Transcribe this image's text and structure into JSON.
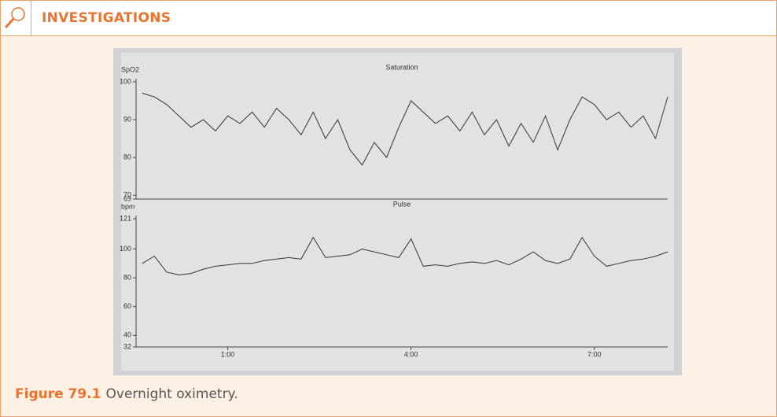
{
  "header": {
    "title": "INVESTIGATIONS"
  },
  "chart_data": [
    {
      "type": "line",
      "title": "Saturation",
      "y_label": "SpO2",
      "color": "#333333",
      "x": [
        -0.4,
        -0.2,
        0,
        0.2,
        0.4,
        0.6,
        0.8,
        1.0,
        1.2,
        1.4,
        1.6,
        1.8,
        2.0,
        2.2,
        2.4,
        2.6,
        2.8,
        3.0,
        3.2,
        3.4,
        3.6,
        3.8,
        4.0,
        4.2,
        4.4,
        4.6,
        4.8,
        5.0,
        5.2,
        5.4,
        5.6,
        5.8,
        6.0,
        6.2,
        6.4,
        6.6,
        6.8,
        7.0,
        7.2,
        7.4,
        7.6,
        7.8,
        8.0,
        8.2
      ],
      "values": [
        97,
        96,
        94,
        91,
        88,
        90,
        87,
        91,
        89,
        92,
        88,
        93,
        90,
        86,
        92,
        85,
        90,
        82,
        78,
        84,
        80,
        88,
        95,
        92,
        89,
        91,
        87,
        92,
        86,
        90,
        83,
        89,
        84,
        91,
        82,
        90,
        96,
        94,
        90,
        92,
        88,
        91,
        85,
        96
      ],
      "xlim": [
        -0.5,
        8.2
      ],
      "ylim": [
        69,
        100
      ],
      "yticks": [
        69,
        70,
        80,
        90,
        100
      ]
    },
    {
      "type": "line",
      "title": "Pulse",
      "y_label": "bpm",
      "color": "#333333",
      "x": [
        -0.4,
        -0.2,
        0,
        0.2,
        0.4,
        0.6,
        0.8,
        1.0,
        1.2,
        1.4,
        1.6,
        1.8,
        2.0,
        2.2,
        2.4,
        2.6,
        2.8,
        3.0,
        3.2,
        3.4,
        3.6,
        3.8,
        4.0,
        4.2,
        4.4,
        4.6,
        4.8,
        5.0,
        5.2,
        5.4,
        5.6,
        5.8,
        6.0,
        6.2,
        6.4,
        6.6,
        6.8,
        7.0,
        7.2,
        7.4,
        7.6,
        7.8,
        8.0,
        8.2
      ],
      "values": [
        90,
        95,
        84,
        82,
        83,
        86,
        88,
        89,
        90,
        90,
        92,
        93,
        94,
        93,
        108,
        94,
        95,
        96,
        100,
        98,
        96,
        94,
        107,
        88,
        89,
        88,
        90,
        91,
        90,
        92,
        89,
        93,
        98,
        92,
        90,
        93,
        108,
        95,
        88,
        90,
        92,
        93,
        95,
        98
      ],
      "xlim": [
        -0.5,
        8.2
      ],
      "ylim": [
        32,
        121
      ],
      "yticks": [
        32,
        40,
        60,
        80,
        100,
        121
      ],
      "xticks": [
        {
          "value": 1,
          "label": "1:00"
        },
        {
          "value": 4,
          "label": "4:00"
        },
        {
          "value": 7,
          "label": "7:00"
        }
      ]
    }
  ],
  "caption": {
    "label": "Figure 79.1",
    "text": "Overnight oximetry."
  }
}
